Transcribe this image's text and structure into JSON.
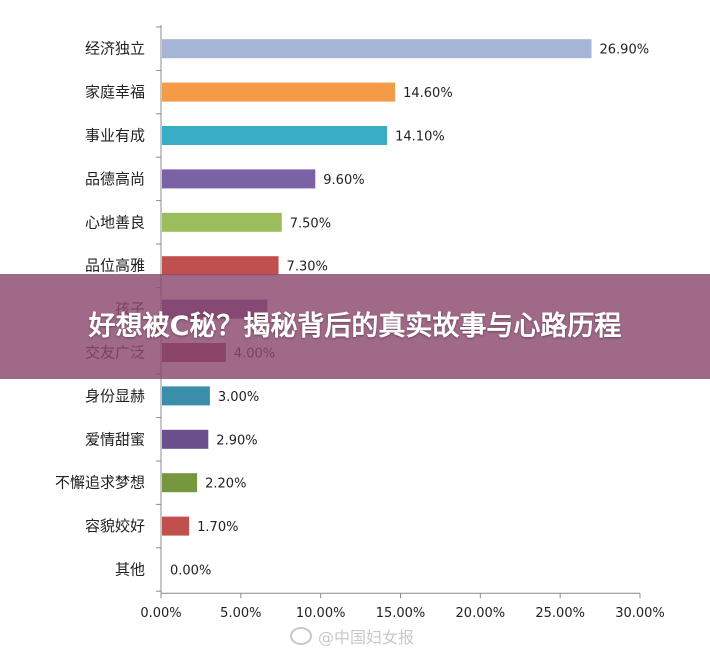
{
  "overlay": {
    "title": "好想被C秘？揭秘背后的真实故事与心路历程"
  },
  "watermark": {
    "text": "@中国妇女报",
    "icon": "weibo-icon"
  },
  "chart_data": {
    "type": "bar",
    "orientation": "horizontal",
    "categories": [
      "经济独立",
      "家庭幸福",
      "事业有成",
      "品德高尚",
      "心地善良",
      "品位高雅",
      "孩子",
      "交友广泛",
      "身份显赫",
      "爱情甜蜜",
      "不懈追求梦想",
      "容貌姣好",
      "其他"
    ],
    "values": [
      26.9,
      14.6,
      14.1,
      9.6,
      7.5,
      7.3,
      6.6,
      4.0,
      3.0,
      2.9,
      2.2,
      1.7,
      0.0
    ],
    "value_labels": [
      "26.90%",
      "14.60%",
      "14.10%",
      "9.60%",
      "7.50%",
      "7.30%",
      "",
      "4.00%",
      "3.00%",
      "2.90%",
      "2.20%",
      "1.70%",
      "0.00%"
    ],
    "colors": [
      "#a6b4d6",
      "#f59a47",
      "#3aadc6",
      "#7b62a4",
      "#9cbd5b",
      "#c0504d",
      "#6a4f8c",
      "#953a3e",
      "#3a8ea9",
      "#6a4f8c",
      "#76963f",
      "#c0504d",
      "#c0504d"
    ],
    "xlim": [
      0,
      30
    ],
    "x_ticks": [
      "0.00%",
      "5.00%",
      "10.00%",
      "15.00%",
      "20.00%",
      "25.00%",
      "30.00%"
    ],
    "title": "",
    "xlabel": "",
    "ylabel": "",
    "grid": false,
    "legend": "none"
  }
}
